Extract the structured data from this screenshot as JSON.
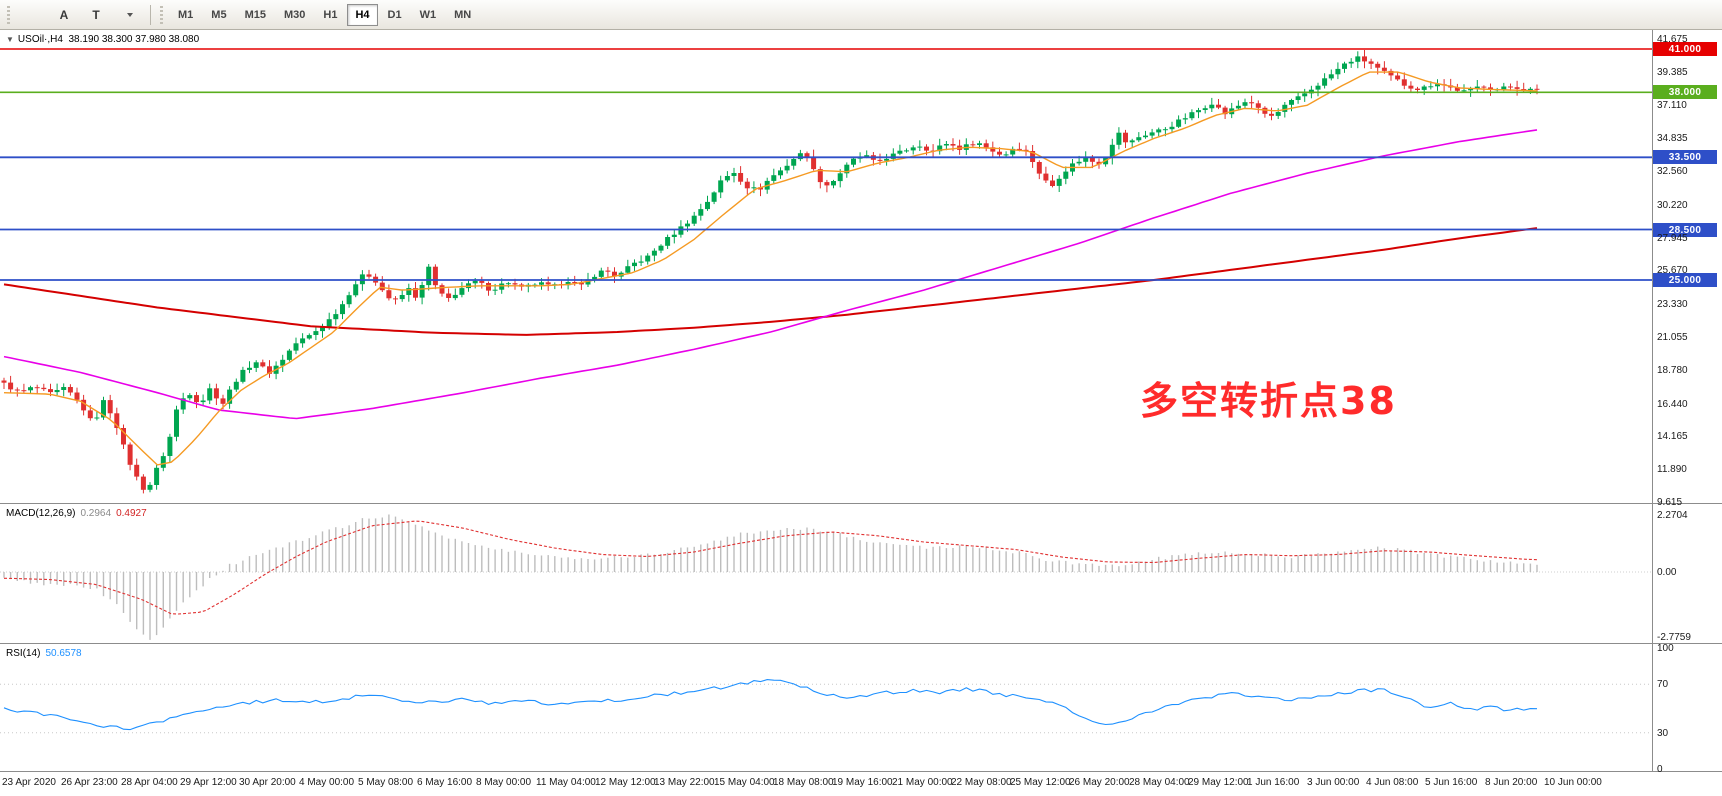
{
  "toolbar": {
    "tools": [
      {
        "name": "chart-type",
        "icon": "bars-icon"
      },
      {
        "name": "text-tool",
        "glyph": "A"
      },
      {
        "name": "trendline-tool",
        "glyph": "T"
      },
      {
        "name": "crosshair-tool",
        "icon": "cross-icon",
        "caret": true
      }
    ],
    "timeframes": [
      {
        "label": "M1",
        "active": false
      },
      {
        "label": "M5",
        "active": false
      },
      {
        "label": "M15",
        "active": false
      },
      {
        "label": "M30",
        "active": false
      },
      {
        "label": "H1",
        "active": false
      },
      {
        "label": "H4",
        "active": true
      },
      {
        "label": "D1",
        "active": false
      },
      {
        "label": "W1",
        "active": false
      },
      {
        "label": "MN",
        "active": false
      }
    ]
  },
  "chart": {
    "symbol_line": {
      "symbol": "USOil·,H4",
      "ohlc": "  38.190 38.300 37.980 38.080"
    },
    "annotation": {
      "text": "多空转折点38",
      "color": "#ff2b2b"
    },
    "levels": [
      {
        "price": "41.000",
        "value": 41.0,
        "color": "#e60000",
        "width": 1.4
      },
      {
        "price": "38.000",
        "value": 38.0,
        "color": "#5aae1e",
        "width": 1.6
      },
      {
        "price": "33.500",
        "value": 33.5,
        "color": "#2e4fc8",
        "width": 1.8
      },
      {
        "price": "28.500",
        "value": 28.5,
        "color": "#2e4fc8",
        "width": 1.8
      },
      {
        "price": "25.000",
        "value": 25.0,
        "color": "#2e4fc8",
        "width": 1.8
      }
    ],
    "y_axis": [
      "41.675",
      "39.385",
      "37.110",
      "34.835",
      "32.560",
      "30.220",
      "27.945",
      "25.670",
      "23.330",
      "21.055",
      "18.780",
      "16.440",
      "14.165",
      "11.890",
      "9.615"
    ],
    "x_axis": [
      "23 Apr 2020",
      "26 Apr 23:00",
      "28 Apr 04:00",
      "29 Apr 12:00",
      "30 Apr 20:00",
      "4 May 00:00",
      "5 May 08:00",
      "6 May 16:00",
      "8 May 00:00",
      "11 May 04:00",
      "12 May 12:00",
      "13 May 22:00",
      "15 May 04:00",
      "18 May 08:00",
      "19 May 16:00",
      "21 May 00:00",
      "22 May 08:00",
      "25 May 12:00",
      "26 May 20:00",
      "28 May 04:00",
      "29 May 12:00",
      "1 Jun 16:00",
      "3 Jun 00:00",
      "4 Jun 08:00",
      "5 Jun 16:00",
      "8 Jun 20:00",
      "10 Jun 00:00"
    ]
  },
  "macd": {
    "label": "MACD(12,26,9)",
    "value_main": "0.2964",
    "value_signal": "0.4927",
    "axis": [
      "2.2704",
      "0.00",
      "-2.7759"
    ]
  },
  "rsi": {
    "label": "RSI(14)",
    "value": "50.6578",
    "axis": [
      "100",
      "70",
      "30",
      "0"
    ],
    "levels": [
      70,
      30
    ]
  },
  "chart_data": {
    "type": "candlestick",
    "instrument": "USOil",
    "timeframe": "H4",
    "candle_count": 232,
    "price_axis_range": [
      9.615,
      41.675
    ],
    "up_color": "#00a650",
    "down_color": "#e03030",
    "ma_fast_color": "#f59a23",
    "ma_mid_color": "#e800e8",
    "ma_slow_color": "#d40000",
    "macd_hist_color": "#bdbdbd",
    "macd_signal_color": "#e03232",
    "rsi_color": "#1e90ff",
    "price_path": [
      [
        0.0,
        17.8
      ],
      [
        0.01,
        17.2
      ],
      [
        0.02,
        17.6
      ],
      [
        0.03,
        17.1
      ],
      [
        0.04,
        17.5
      ],
      [
        0.05,
        16.4
      ],
      [
        0.058,
        15.0
      ],
      [
        0.065,
        16.6
      ],
      [
        0.072,
        15.4
      ],
      [
        0.08,
        12.8
      ],
      [
        0.088,
        11.0
      ],
      [
        0.093,
        10.3
      ],
      [
        0.1,
        12.0
      ],
      [
        0.107,
        13.6
      ],
      [
        0.113,
        16.2
      ],
      [
        0.12,
        17.3
      ],
      [
        0.128,
        16.4
      ],
      [
        0.135,
        17.6
      ],
      [
        0.142,
        16.3
      ],
      [
        0.15,
        17.9
      ],
      [
        0.158,
        18.9
      ],
      [
        0.165,
        19.4
      ],
      [
        0.172,
        18.5
      ],
      [
        0.18,
        19.3
      ],
      [
        0.19,
        20.6
      ],
      [
        0.2,
        21.2
      ],
      [
        0.21,
        22.0
      ],
      [
        0.22,
        23.2
      ],
      [
        0.228,
        24.6
      ],
      [
        0.236,
        25.5
      ],
      [
        0.243,
        24.9
      ],
      [
        0.25,
        23.8
      ],
      [
        0.257,
        23.5
      ],
      [
        0.263,
        24.5
      ],
      [
        0.27,
        23.7
      ],
      [
        0.277,
        25.9
      ],
      [
        0.283,
        24.1
      ],
      [
        0.29,
        23.7
      ],
      [
        0.298,
        24.4
      ],
      [
        0.308,
        24.9
      ],
      [
        0.318,
        24.3
      ],
      [
        0.328,
        24.9
      ],
      [
        0.338,
        24.4
      ],
      [
        0.348,
        24.8
      ],
      [
        0.358,
        24.5
      ],
      [
        0.368,
        25.0
      ],
      [
        0.376,
        24.5
      ],
      [
        0.384,
        25.3
      ],
      [
        0.392,
        25.7
      ],
      [
        0.4,
        25.2
      ],
      [
        0.41,
        26.1
      ],
      [
        0.42,
        26.6
      ],
      [
        0.43,
        27.6
      ],
      [
        0.44,
        28.5
      ],
      [
        0.45,
        29.4
      ],
      [
        0.46,
        30.6
      ],
      [
        0.468,
        31.9
      ],
      [
        0.476,
        32.5
      ],
      [
        0.484,
        31.5
      ],
      [
        0.492,
        31.2
      ],
      [
        0.5,
        32.1
      ],
      [
        0.508,
        32.7
      ],
      [
        0.516,
        33.5
      ],
      [
        0.523,
        33.9
      ],
      [
        0.53,
        32.1
      ],
      [
        0.538,
        31.5
      ],
      [
        0.546,
        32.5
      ],
      [
        0.554,
        33.3
      ],
      [
        0.561,
        33.7
      ],
      [
        0.568,
        33.1
      ],
      [
        0.576,
        33.5
      ],
      [
        0.586,
        33.9
      ],
      [
        0.596,
        34.4
      ],
      [
        0.606,
        33.9
      ],
      [
        0.614,
        34.5
      ],
      [
        0.624,
        34.1
      ],
      [
        0.634,
        34.6
      ],
      [
        0.644,
        34.0
      ],
      [
        0.652,
        33.6
      ],
      [
        0.66,
        34.3
      ],
      [
        0.668,
        33.8
      ],
      [
        0.676,
        32.3
      ],
      [
        0.683,
        31.4
      ],
      [
        0.69,
        32.4
      ],
      [
        0.698,
        33.1
      ],
      [
        0.706,
        33.5
      ],
      [
        0.713,
        33.0
      ],
      [
        0.72,
        33.7
      ],
      [
        0.726,
        35.3
      ],
      [
        0.733,
        34.4
      ],
      [
        0.74,
        34.9
      ],
      [
        0.748,
        35.2
      ],
      [
        0.758,
        35.5
      ],
      [
        0.768,
        36.1
      ],
      [
        0.778,
        36.7
      ],
      [
        0.788,
        37.3
      ],
      [
        0.796,
        36.5
      ],
      [
        0.804,
        37.0
      ],
      [
        0.812,
        37.5
      ],
      [
        0.82,
        36.6
      ],
      [
        0.828,
        36.3
      ],
      [
        0.836,
        37.1
      ],
      [
        0.844,
        37.6
      ],
      [
        0.854,
        38.3
      ],
      [
        0.864,
        39.1
      ],
      [
        0.874,
        39.9
      ],
      [
        0.882,
        40.4
      ],
      [
        0.89,
        40.1
      ],
      [
        0.898,
        39.5
      ],
      [
        0.906,
        39.0
      ],
      [
        0.914,
        38.5
      ],
      [
        0.924,
        38.2
      ],
      [
        0.934,
        38.7
      ],
      [
        0.944,
        38.3
      ],
      [
        0.954,
        38.0
      ],
      [
        0.964,
        38.5
      ],
      [
        0.974,
        38.2
      ],
      [
        0.984,
        38.4
      ],
      [
        1.0,
        38.08
      ]
    ],
    "ma_fast_orange": [
      [
        0.0,
        17.2
      ],
      [
        0.03,
        17.1
      ],
      [
        0.05,
        16.6
      ],
      [
        0.07,
        15.3
      ],
      [
        0.09,
        13.2
      ],
      [
        0.1,
        12.2
      ],
      [
        0.11,
        12.4
      ],
      [
        0.125,
        14.0
      ],
      [
        0.14,
        15.9
      ],
      [
        0.155,
        17.4
      ],
      [
        0.17,
        18.4
      ],
      [
        0.185,
        19.2
      ],
      [
        0.2,
        20.3
      ],
      [
        0.215,
        21.4
      ],
      [
        0.23,
        23.0
      ],
      [
        0.245,
        24.5
      ],
      [
        0.26,
        24.3
      ],
      [
        0.275,
        24.4
      ],
      [
        0.29,
        24.5
      ],
      [
        0.31,
        24.6
      ],
      [
        0.33,
        24.6
      ],
      [
        0.35,
        24.6
      ],
      [
        0.37,
        24.7
      ],
      [
        0.39,
        25.1
      ],
      [
        0.41,
        25.5
      ],
      [
        0.43,
        26.4
      ],
      [
        0.45,
        27.8
      ],
      [
        0.47,
        29.6
      ],
      [
        0.49,
        31.3
      ],
      [
        0.51,
        31.9
      ],
      [
        0.53,
        32.6
      ],
      [
        0.55,
        32.5
      ],
      [
        0.57,
        33.1
      ],
      [
        0.59,
        33.5
      ],
      [
        0.61,
        34.0
      ],
      [
        0.63,
        34.2
      ],
      [
        0.65,
        34.1
      ],
      [
        0.67,
        33.9
      ],
      [
        0.69,
        32.8
      ],
      [
        0.71,
        32.8
      ],
      [
        0.73,
        33.9
      ],
      [
        0.75,
        34.8
      ],
      [
        0.77,
        35.5
      ],
      [
        0.79,
        36.4
      ],
      [
        0.81,
        36.9
      ],
      [
        0.83,
        36.7
      ],
      [
        0.85,
        37.1
      ],
      [
        0.87,
        38.3
      ],
      [
        0.89,
        39.4
      ],
      [
        0.91,
        39.4
      ],
      [
        0.93,
        38.7
      ],
      [
        0.95,
        38.3
      ],
      [
        0.97,
        38.2
      ],
      [
        1.0,
        38.1
      ]
    ],
    "ma_mid_magenta": [
      [
        0.0,
        19.7
      ],
      [
        0.05,
        18.6
      ],
      [
        0.1,
        17.2
      ],
      [
        0.14,
        16.0
      ],
      [
        0.19,
        15.4
      ],
      [
        0.24,
        16.1
      ],
      [
        0.3,
        17.2
      ],
      [
        0.35,
        18.2
      ],
      [
        0.4,
        19.1
      ],
      [
        0.45,
        20.2
      ],
      [
        0.5,
        21.4
      ],
      [
        0.55,
        22.9
      ],
      [
        0.6,
        24.3
      ],
      [
        0.65,
        25.9
      ],
      [
        0.7,
        27.5
      ],
      [
        0.75,
        29.3
      ],
      [
        0.8,
        31.0
      ],
      [
        0.85,
        32.4
      ],
      [
        0.9,
        33.6
      ],
      [
        0.95,
        34.6
      ],
      [
        1.0,
        35.4
      ]
    ],
    "ma_slow_red": [
      [
        0.0,
        24.7
      ],
      [
        0.1,
        23.1
      ],
      [
        0.2,
        21.8
      ],
      [
        0.28,
        21.35
      ],
      [
        0.34,
        21.2
      ],
      [
        0.4,
        21.4
      ],
      [
        0.45,
        21.7
      ],
      [
        0.5,
        22.1
      ],
      [
        0.55,
        22.6
      ],
      [
        0.6,
        23.2
      ],
      [
        0.65,
        23.8
      ],
      [
        0.7,
        24.4
      ],
      [
        0.75,
        25.0
      ],
      [
        0.8,
        25.7
      ],
      [
        0.85,
        26.4
      ],
      [
        0.9,
        27.1
      ],
      [
        0.95,
        27.9
      ],
      [
        1.0,
        28.6
      ]
    ],
    "macd_hist": [
      [
        0.0,
        -0.3
      ],
      [
        0.02,
        -0.45
      ],
      [
        0.04,
        -0.5
      ],
      [
        0.06,
        -0.7
      ],
      [
        0.075,
        -1.4
      ],
      [
        0.085,
        -2.2
      ],
      [
        0.095,
        -2.78
      ],
      [
        0.105,
        -2.1
      ],
      [
        0.115,
        -1.3
      ],
      [
        0.13,
        -0.5
      ],
      [
        0.145,
        0.2
      ],
      [
        0.16,
        0.6
      ],
      [
        0.18,
        1.0
      ],
      [
        0.2,
        1.4
      ],
      [
        0.22,
        1.8
      ],
      [
        0.235,
        2.15
      ],
      [
        0.25,
        2.27
      ],
      [
        0.265,
        2.0
      ],
      [
        0.28,
        1.6
      ],
      [
        0.3,
        1.2
      ],
      [
        0.32,
        0.9
      ],
      [
        0.34,
        0.75
      ],
      [
        0.36,
        0.6
      ],
      [
        0.38,
        0.55
      ],
      [
        0.4,
        0.6
      ],
      [
        0.42,
        0.7
      ],
      [
        0.44,
        0.9
      ],
      [
        0.46,
        1.2
      ],
      [
        0.48,
        1.5
      ],
      [
        0.5,
        1.7
      ],
      [
        0.52,
        1.75
      ],
      [
        0.54,
        1.6
      ],
      [
        0.56,
        1.3
      ],
      [
        0.58,
        1.1
      ],
      [
        0.6,
        1.0
      ],
      [
        0.62,
        1.0
      ],
      [
        0.64,
        0.95
      ],
      [
        0.66,
        0.8
      ],
      [
        0.68,
        0.5
      ],
      [
        0.7,
        0.3
      ],
      [
        0.72,
        0.25
      ],
      [
        0.74,
        0.4
      ],
      [
        0.76,
        0.6
      ],
      [
        0.78,
        0.75
      ],
      [
        0.8,
        0.8
      ],
      [
        0.82,
        0.7
      ],
      [
        0.84,
        0.6
      ],
      [
        0.86,
        0.75
      ],
      [
        0.88,
        0.9
      ],
      [
        0.9,
        0.95
      ],
      [
        0.92,
        0.8
      ],
      [
        0.94,
        0.6
      ],
      [
        0.96,
        0.5
      ],
      [
        0.98,
        0.4
      ],
      [
        1.0,
        0.2964
      ]
    ],
    "macd_signal": [
      [
        0.0,
        -0.25
      ],
      [
        0.03,
        -0.3
      ],
      [
        0.06,
        -0.5
      ],
      [
        0.09,
        -1.1
      ],
      [
        0.11,
        -1.7
      ],
      [
        0.13,
        -1.6
      ],
      [
        0.15,
        -0.9
      ],
      [
        0.17,
        -0.1
      ],
      [
        0.19,
        0.6
      ],
      [
        0.21,
        1.2
      ],
      [
        0.24,
        1.85
      ],
      [
        0.27,
        2.05
      ],
      [
        0.3,
        1.75
      ],
      [
        0.33,
        1.3
      ],
      [
        0.36,
        0.95
      ],
      [
        0.39,
        0.7
      ],
      [
        0.42,
        0.62
      ],
      [
        0.45,
        0.8
      ],
      [
        0.48,
        1.15
      ],
      [
        0.51,
        1.45
      ],
      [
        0.54,
        1.6
      ],
      [
        0.57,
        1.45
      ],
      [
        0.6,
        1.2
      ],
      [
        0.63,
        1.05
      ],
      [
        0.66,
        0.9
      ],
      [
        0.69,
        0.6
      ],
      [
        0.72,
        0.4
      ],
      [
        0.75,
        0.38
      ],
      [
        0.78,
        0.55
      ],
      [
        0.81,
        0.7
      ],
      [
        0.84,
        0.65
      ],
      [
        0.87,
        0.7
      ],
      [
        0.9,
        0.85
      ],
      [
        0.93,
        0.8
      ],
      [
        0.96,
        0.65
      ],
      [
        0.99,
        0.52
      ],
      [
        1.0,
        0.4927
      ]
    ],
    "rsi_line": [
      [
        0.0,
        50
      ],
      [
        0.02,
        46
      ],
      [
        0.04,
        42
      ],
      [
        0.06,
        36
      ],
      [
        0.08,
        33
      ],
      [
        0.1,
        38
      ],
      [
        0.12,
        45
      ],
      [
        0.14,
        52
      ],
      [
        0.16,
        55
      ],
      [
        0.18,
        57
      ],
      [
        0.2,
        55
      ],
      [
        0.22,
        58
      ],
      [
        0.24,
        62
      ],
      [
        0.26,
        57
      ],
      [
        0.28,
        55
      ],
      [
        0.3,
        58
      ],
      [
        0.32,
        54
      ],
      [
        0.34,
        56
      ],
      [
        0.36,
        53
      ],
      [
        0.38,
        55
      ],
      [
        0.4,
        57
      ],
      [
        0.42,
        60
      ],
      [
        0.44,
        63
      ],
      [
        0.46,
        66
      ],
      [
        0.48,
        70
      ],
      [
        0.5,
        75
      ],
      [
        0.51,
        72
      ],
      [
        0.53,
        64
      ],
      [
        0.55,
        58
      ],
      [
        0.57,
        62
      ],
      [
        0.59,
        65
      ],
      [
        0.61,
        63
      ],
      [
        0.63,
        66
      ],
      [
        0.65,
        62
      ],
      [
        0.67,
        58
      ],
      [
        0.69,
        52
      ],
      [
        0.71,
        40
      ],
      [
        0.72,
        36
      ],
      [
        0.74,
        44
      ],
      [
        0.76,
        52
      ],
      [
        0.78,
        58
      ],
      [
        0.8,
        62
      ],
      [
        0.82,
        60
      ],
      [
        0.84,
        57
      ],
      [
        0.86,
        60
      ],
      [
        0.88,
        64
      ],
      [
        0.9,
        66
      ],
      [
        0.92,
        57
      ],
      [
        0.93,
        50
      ],
      [
        0.94,
        55
      ],
      [
        0.95,
        52
      ],
      [
        0.96,
        48
      ],
      [
        0.97,
        52
      ],
      [
        0.98,
        49
      ],
      [
        1.0,
        50.66
      ]
    ]
  }
}
